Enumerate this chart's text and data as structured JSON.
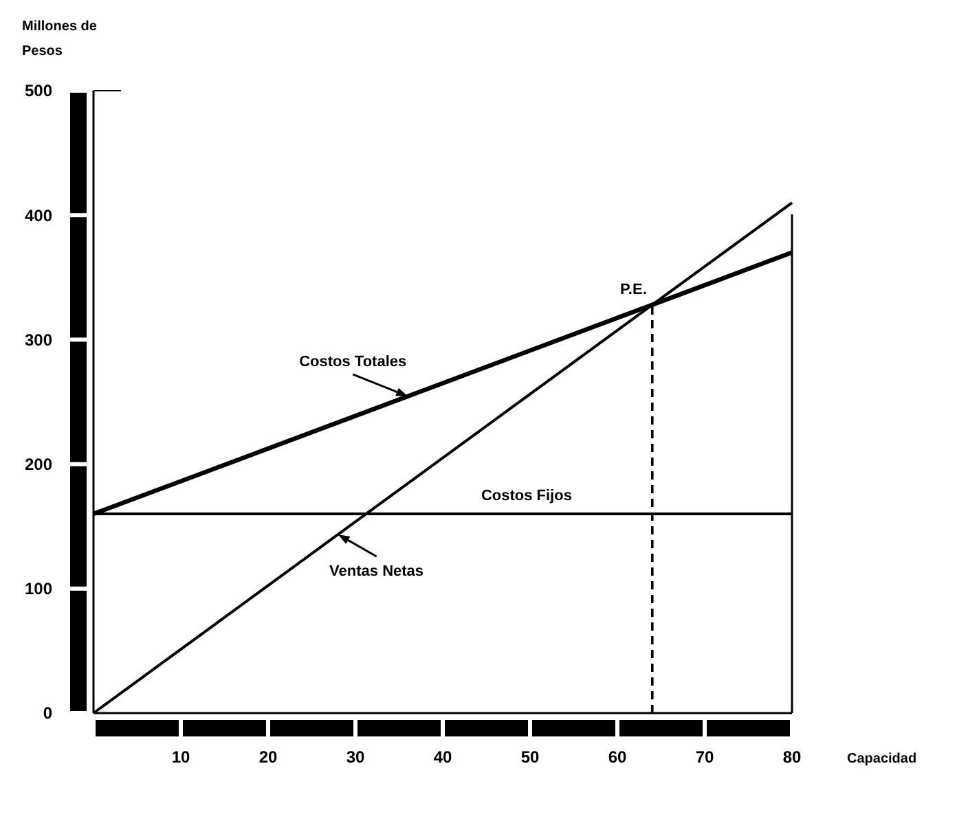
{
  "chart_data": {
    "type": "line",
    "xlabel": "Capacidad",
    "ylabel": "Millones de Pesos",
    "x": [
      0,
      80
    ],
    "series": [
      {
        "name": "Costos Totales",
        "color": "#000000",
        "values": [
          160,
          370
        ]
      },
      {
        "name": "Costos Fijos",
        "color": "#000000",
        "values": [
          160,
          160
        ]
      },
      {
        "name": "Ventas Netas",
        "color": "#000000",
        "values": [
          0,
          410
        ]
      },
      {
        "color": "#000000",
        "x": [
          64,
          64
        ],
        "values": [
          0,
          328
        ],
        "line_style": "dashed"
      }
    ],
    "annotations": [
      {
        "text": "P.E.",
        "x": 64,
        "y": 328
      }
    ],
    "xlim": [
      0,
      80
    ],
    "ylim": [
      0,
      500
    ],
    "xticks": [
      {
        "value": 0,
        "label": null
      },
      10,
      20,
      30,
      40,
      50,
      60,
      70,
      80
    ],
    "yticks": [
      0,
      100,
      200,
      300,
      400,
      500
    ],
    "grid": false,
    "marker": "none",
    "line_style": "solid"
  }
}
